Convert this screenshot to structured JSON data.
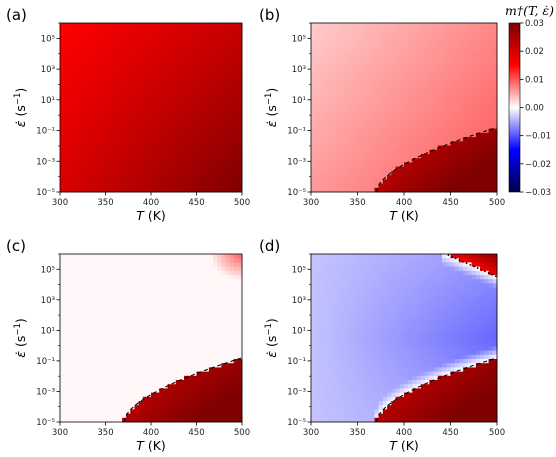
{
  "chart_data": [
    {
      "type": "heatmap",
      "panel_label": "(a)",
      "xlabel_var": "T",
      "xlabel_unit": " (K)",
      "ylabel_var": "ε̇",
      "ylabel_unit": " (s",
      "xlim": [
        300,
        500
      ],
      "ylim_log10": [
        -5,
        6
      ],
      "x_ticks": [
        "300",
        "350",
        "400",
        "450",
        "500"
      ],
      "y_ticks": [
        "10⁻⁵",
        "10⁻³",
        "10⁻¹",
        "10¹",
        "10³",
        "10⁵"
      ],
      "field": "all positive; m rises from ~0.017 at (300 K, 10^6 s^-1) to ~0.030 at (500 K, 10^-5 s^-1)",
      "boundary": []
    },
    {
      "type": "heatmap",
      "panel_label": "(b)",
      "xlabel_var": "T",
      "xlabel_unit": " (K)",
      "ylabel_var": "ε̇",
      "ylabel_unit": " (s",
      "xlim": [
        300,
        500
      ],
      "ylim_log10": [
        -5,
        6
      ],
      "x_ticks": [
        "300",
        "350",
        "400",
        "450",
        "500"
      ],
      "y_ticks": [
        "10⁻⁵",
        "10⁻³",
        "10⁻¹",
        "10¹",
        "10³",
        "10⁵"
      ],
      "field": "weakly positive (~0.004-0.008) above dashed line, strongly positive (0.02-0.03) below it",
      "boundary": [
        [
          370,
          -5.0
        ],
        [
          400,
          -3.4
        ],
        [
          430,
          -2.2
        ],
        [
          460,
          -1.5
        ],
        [
          500,
          -0.8
        ]
      ]
    },
    {
      "type": "heatmap",
      "panel_label": "(c)",
      "xlabel_var": "T",
      "xlabel_unit": " (K)",
      "ylabel_var": "ε̇",
      "ylabel_unit": " (s",
      "xlim": [
        300,
        500
      ],
      "ylim_log10": [
        -5,
        6
      ],
      "x_ticks": [
        "300",
        "350",
        "400",
        "450",
        "500"
      ],
      "y_ticks": [
        "10⁻⁵",
        "10⁻³",
        "10⁻¹",
        "10¹",
        "10³",
        "10⁵"
      ],
      "field": "near zero above dashed line (small positive patch near 490 K, 10^5 s^-1), strongly positive below it",
      "boundary": [
        [
          370,
          -5.0
        ],
        [
          400,
          -3.4
        ],
        [
          430,
          -2.2
        ],
        [
          460,
          -1.5
        ],
        [
          500,
          -0.8
        ]
      ]
    },
    {
      "type": "heatmap",
      "panel_label": "(d)",
      "xlabel_var": "T",
      "xlabel_unit": " (K)",
      "ylabel_var": "ε̇",
      "ylabel_unit": " (s",
      "xlim": [
        300,
        500
      ],
      "ylim_log10": [
        -5,
        6
      ],
      "x_ticks": [
        "300",
        "350",
        "400",
        "450",
        "500"
      ],
      "y_ticks": [
        "10⁻⁵",
        "10⁻³",
        "10⁻¹",
        "10¹",
        "10³",
        "10⁵"
      ],
      "field": "negative (~-0.005 to -0.01) in middle band, positive below lower dashed line and above upper dotted line",
      "boundary": [
        [
          370,
          -5.0
        ],
        [
          400,
          -3.4
        ],
        [
          430,
          -2.2
        ],
        [
          460,
          -1.5
        ],
        [
          500,
          -0.8
        ]
      ],
      "boundary_upper": [
        [
          445,
          6.0
        ],
        [
          470,
          5.2
        ],
        [
          500,
          4.5
        ]
      ]
    }
  ],
  "colorbar": {
    "title": "m†(T, ε̇)",
    "range": [
      -0.03,
      0.03
    ],
    "tick_labels": [
      "0.03",
      "0.02",
      "0.01",
      "0.00",
      "−0.01",
      "−0.02",
      "−0.03"
    ],
    "colormap": "seismic"
  }
}
